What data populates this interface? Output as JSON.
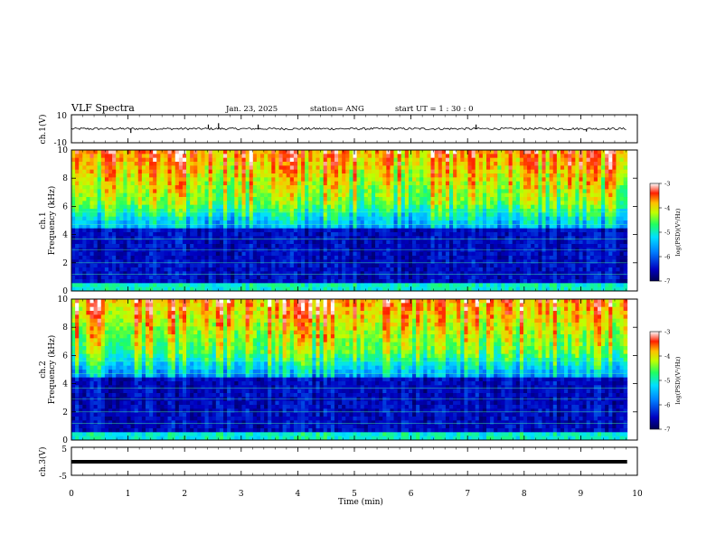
{
  "header": {
    "title": "VLF Spectra",
    "date": "Jan. 23, 2025",
    "station": "station= ANG",
    "start_ut": "start  UT =   1 : 30 : 0"
  },
  "chart_data": [
    {
      "type": "line",
      "panel": "ch1-waveform",
      "ylabel": "ch.1(V)",
      "ylim": [
        -10,
        10
      ],
      "y_ticks": [
        "10",
        "-10"
      ],
      "baseline": 0,
      "spikes": [
        {
          "x": 1.05,
          "y": -3
        },
        {
          "x": 2.42,
          "y": 3
        },
        {
          "x": 2.6,
          "y": 4
        },
        {
          "x": 3.3,
          "y": 3
        },
        {
          "x": 7.15,
          "y": 3
        },
        {
          "x": 9.1,
          "y": -2
        }
      ]
    },
    {
      "type": "heatmap",
      "panel": "ch1-spectrogram",
      "ylabel_line1": "ch.1",
      "ylabel_line2": "Frequency (kHz)",
      "ylim": [
        0,
        10
      ],
      "y_ticks": [
        "0",
        "2",
        "4",
        "6",
        "8",
        "10"
      ],
      "colorbar": {
        "label": "log(PSD)(V²/Hz)",
        "range": [
          -7,
          -3
        ],
        "ticks": [
          "-3",
          "-4",
          "-5",
          "-6",
          "-7"
        ]
      }
    },
    {
      "type": "heatmap",
      "panel": "ch2-spectrogram",
      "ylabel_line1": "ch.2",
      "ylabel_line2": "Frequency (kHz)",
      "ylim": [
        0,
        10
      ],
      "y_ticks": [
        "0",
        "2",
        "4",
        "6",
        "8",
        "10"
      ],
      "colorbar": {
        "label": "log(PSD)(V²/Hz)",
        "range": [
          -7,
          -3
        ],
        "ticks": [
          "-3",
          "-4",
          "-5",
          "-6",
          "-7"
        ]
      }
    },
    {
      "type": "line",
      "panel": "ch3-waveform",
      "ylabel": "ch.3(V)",
      "ylim": [
        -5,
        5
      ],
      "y_ticks": [
        "5",
        "-5"
      ],
      "baseline": 0
    }
  ],
  "x_axis": {
    "label": "Time  (min)",
    "range": [
      0,
      10
    ],
    "ticks": [
      "0",
      "1",
      "2",
      "3",
      "4",
      "5",
      "6",
      "7",
      "8",
      "9",
      "10"
    ],
    "data_end": 9.82
  },
  "colors": {
    "background": "#ffffff",
    "axes": "#000000",
    "colormap": [
      "#000050",
      "#0000a0",
      "#0060ff",
      "#00e0ff",
      "#20ff60",
      "#c0ff00",
      "#ffc000",
      "#ff2000",
      "#ffffff"
    ]
  }
}
